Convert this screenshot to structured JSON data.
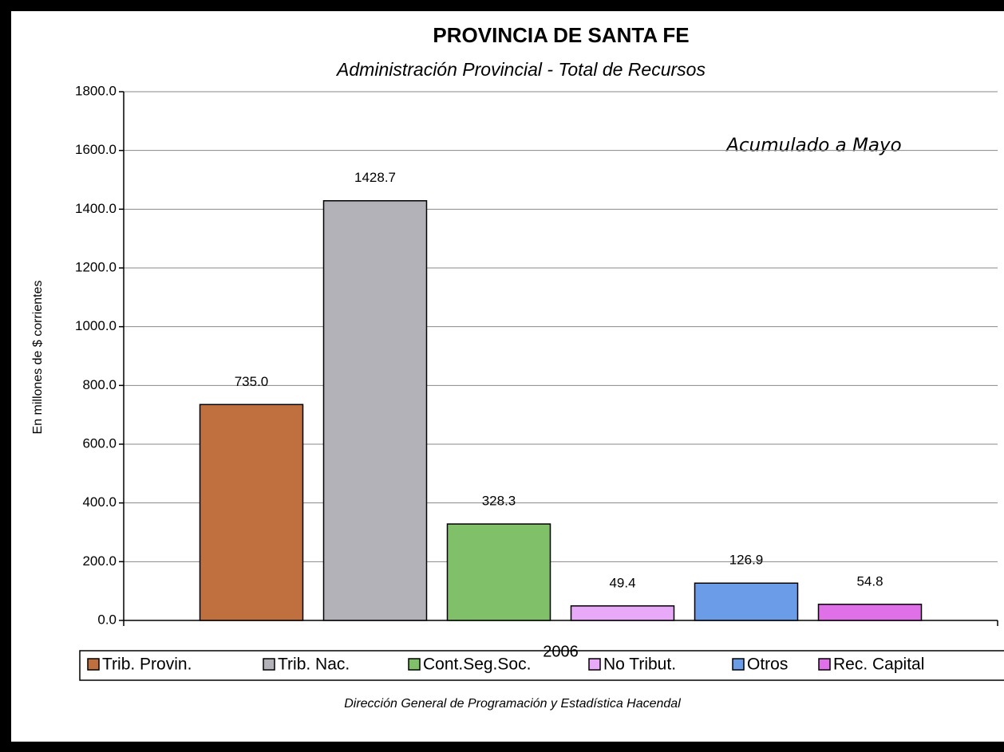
{
  "chart_data": {
    "type": "bar",
    "title": "PROVINCIA DE SANTA FE",
    "subtitle": "Administración  Provincial - Total de Recursos",
    "y_label": "En millones de $ corrientes",
    "annotation": "Acumulado a Mayo",
    "source": "Dirección General de Programación y Estadística Hacendal",
    "categories": [
      "2006"
    ],
    "series": [
      {
        "name": "Trib. Provin.",
        "color": "#c0703e",
        "values": [
          735.0
        ],
        "value_labels": [
          "735.0"
        ]
      },
      {
        "name": "Trib. Nac.",
        "color": "#b3b2b8",
        "values": [
          1428.7
        ],
        "value_labels": [
          "1428.7"
        ]
      },
      {
        "name": "Cont.Seg.Soc.",
        "color": "#80c068",
        "values": [
          328.3
        ],
        "value_labels": [
          "328.3"
        ]
      },
      {
        "name": "No Tribut.",
        "color": "#e8aaf8",
        "values": [
          49.4
        ],
        "value_labels": [
          "49.4"
        ]
      },
      {
        "name": "Otros",
        "color": "#6a9ce8",
        "values": [
          126.9
        ],
        "value_labels": [
          "126.9"
        ]
      },
      {
        "name": "Rec. Capital",
        "color": "#e070e8",
        "values": [
          54.8
        ],
        "value_labels": [
          "54.8"
        ]
      }
    ],
    "ylim": [
      0,
      1800
    ],
    "yticks": [
      {
        "value": 0,
        "label": "0.0"
      },
      {
        "value": 200,
        "label": "200.0"
      },
      {
        "value": 400,
        "label": "400.0"
      },
      {
        "value": 600,
        "label": "600.0"
      },
      {
        "value": 800,
        "label": "800.0"
      },
      {
        "value": 1000,
        "label": "1000.0"
      },
      {
        "value": 1200,
        "label": "1200.0"
      },
      {
        "value": 1400,
        "label": "1400.0"
      },
      {
        "value": 1600,
        "label": "1600.0"
      },
      {
        "value": 1800,
        "label": "1800.0"
      }
    ],
    "grid": true,
    "legend": "bottom"
  }
}
